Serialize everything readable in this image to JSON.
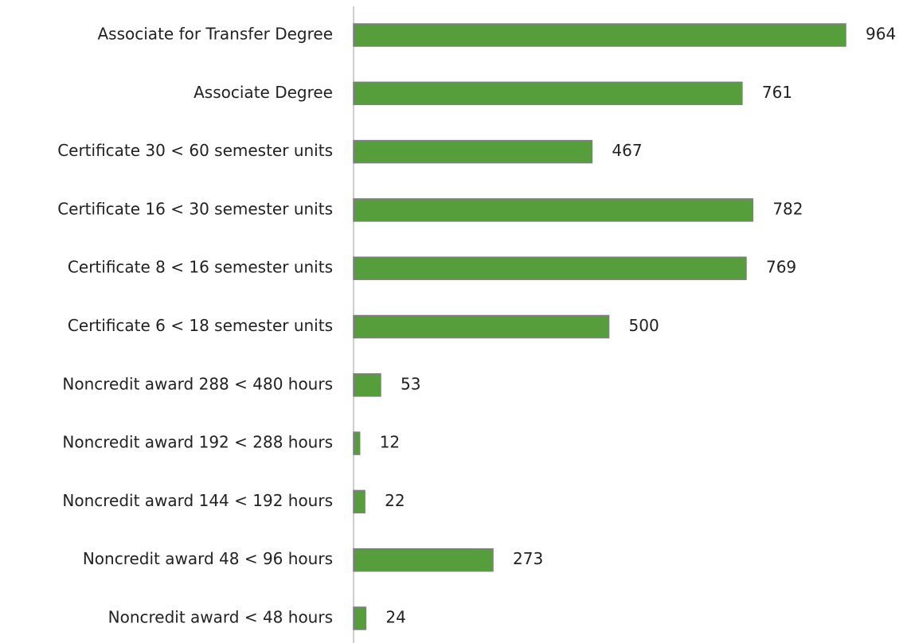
{
  "chart_data": {
    "type": "bar",
    "orientation": "horizontal",
    "color": "#559e3b",
    "categories": [
      "Associate for Transfer Degree",
      "Associate Degree",
      "Certificate 30 < 60 semester units",
      "Certificate 16 < 30 semester units",
      "Certificate 8 < 16 semester units",
      "Certificate 6 < 18 semester units",
      "Noncredit award 288 < 480 hours",
      "Noncredit award 192 < 288 hours",
      "Noncredit award 144 < 192 hours",
      "Noncredit award 48 < 96 hours",
      "Noncredit award < 48 hours"
    ],
    "values": [
      964,
      761,
      467,
      782,
      769,
      500,
      53,
      12,
      22,
      273,
      24
    ]
  }
}
